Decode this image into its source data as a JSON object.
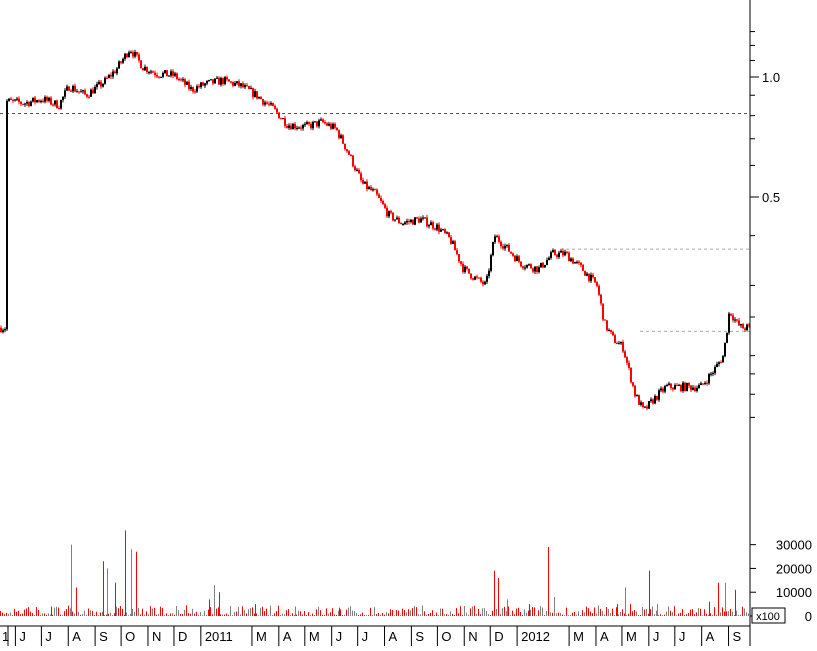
{
  "chart_data": [
    {
      "type": "candlestick",
      "title": "",
      "y_scale": "log",
      "price_axis_ticks": [
        "1.0",
        "0.5"
      ],
      "price_axis_tick_values": [
        1.0,
        0.5
      ],
      "reference_levels": [
        0.81,
        0.37,
        0.23
      ],
      "colors": {
        "up": "#000000",
        "down": "#ff0000",
        "guide": "#808080"
      },
      "time_axis_labels": [
        "J",
        "J",
        "A",
        "S",
        "O",
        "N",
        "D",
        "2011",
        "M",
        "A",
        "M",
        "J",
        "J",
        "A",
        "S",
        "O",
        "N",
        "D",
        "2012",
        "M",
        "A",
        "M",
        "J",
        "J",
        "A",
        "S"
      ],
      "price_path": [
        [
          "2010-05-20",
          0.87
        ],
        [
          "2010-06-10",
          0.86
        ],
        [
          "2010-07-01",
          0.88
        ],
        [
          "2010-07-20",
          0.85
        ],
        [
          "2010-08-01",
          0.95
        ],
        [
          "2010-08-20",
          0.9
        ],
        [
          "2010-09-10",
          0.97
        ],
        [
          "2010-09-25",
          1.05
        ],
        [
          "2010-10-10",
          1.18
        ],
        [
          "2010-10-25",
          1.06
        ],
        [
          "2010-11-10",
          1.02
        ],
        [
          "2010-11-30",
          1.01
        ],
        [
          "2010-12-20",
          0.93
        ],
        [
          "2011-01-05",
          0.96
        ],
        [
          "2011-01-25",
          0.98
        ],
        [
          "2011-02-15",
          0.95
        ],
        [
          "2011-03-05",
          0.9
        ],
        [
          "2011-03-25",
          0.83
        ],
        [
          "2011-04-10",
          0.76
        ],
        [
          "2011-04-30",
          0.75
        ],
        [
          "2011-05-20",
          0.77
        ],
        [
          "2011-06-05",
          0.74
        ],
        [
          "2011-06-20",
          0.64
        ],
        [
          "2011-07-05",
          0.54
        ],
        [
          "2011-07-20",
          0.51
        ],
        [
          "2011-08-05",
          0.45
        ],
        [
          "2011-08-20",
          0.43
        ],
        [
          "2011-09-10",
          0.44
        ],
        [
          "2011-09-30",
          0.42
        ],
        [
          "2011-10-15",
          0.39
        ],
        [
          "2011-10-30",
          0.33
        ],
        [
          "2011-11-15",
          0.31
        ],
        [
          "2011-11-25",
          0.3
        ],
        [
          "2011-12-05",
          0.4
        ],
        [
          "2011-12-20",
          0.37
        ],
        [
          "2012-01-05",
          0.34
        ],
        [
          "2012-01-25",
          0.33
        ],
        [
          "2012-02-10",
          0.36
        ],
        [
          "2012-02-25",
          0.36
        ],
        [
          "2012-03-15",
          0.33
        ],
        [
          "2012-04-01",
          0.3
        ],
        [
          "2012-04-10",
          0.24
        ],
        [
          "2012-04-20",
          0.22
        ],
        [
          "2012-05-01",
          0.21
        ],
        [
          "2012-05-15",
          0.16
        ],
        [
          "2012-05-25",
          0.145
        ],
        [
          "2012-06-05",
          0.155
        ],
        [
          "2012-06-20",
          0.167
        ],
        [
          "2012-07-10",
          0.167
        ],
        [
          "2012-07-30",
          0.167
        ],
        [
          "2012-08-15",
          0.185
        ],
        [
          "2012-08-25",
          0.2
        ],
        [
          "2012-09-01",
          0.26
        ],
        [
          "2012-09-10",
          0.24
        ],
        [
          "2012-09-15",
          0.235
        ]
      ]
    },
    {
      "type": "bar",
      "title": "",
      "axis_unit_label": "x100",
      "y_ticks": [
        "30000",
        "20000",
        "10000",
        "0"
      ],
      "y_tick_values": [
        30000,
        20000,
        10000,
        0
      ],
      "ylim": [
        0,
        37000
      ],
      "volume_spikes": [
        [
          "2010-07-12",
          4000
        ],
        [
          "2010-08-04",
          30000
        ],
        [
          "2010-08-10",
          12000
        ],
        [
          "2010-09-10",
          23000
        ],
        [
          "2010-09-15",
          20000
        ],
        [
          "2010-09-24",
          14000
        ],
        [
          "2010-10-05",
          36000
        ],
        [
          "2010-10-12",
          28000
        ],
        [
          "2010-10-18",
          27000
        ],
        [
          "2011-01-10",
          7000
        ],
        [
          "2011-01-16",
          13000
        ],
        [
          "2011-01-22",
          10000
        ],
        [
          "2011-03-05",
          5000
        ],
        [
          "2011-04-20",
          4000
        ],
        [
          "2011-06-10",
          3500
        ],
        [
          "2011-08-10",
          2500
        ],
        [
          "2011-11-10",
          4000
        ],
        [
          "2011-12-05",
          19000
        ],
        [
          "2011-12-10",
          16000
        ],
        [
          "2011-12-20",
          7000
        ],
        [
          "2012-01-15",
          5000
        ],
        [
          "2012-02-06",
          29000
        ],
        [
          "2012-02-12",
          8000
        ],
        [
          "2012-03-20",
          4000
        ],
        [
          "2012-04-25",
          5000
        ],
        [
          "2012-05-05",
          12000
        ],
        [
          "2012-05-10",
          5000
        ],
        [
          "2012-06-01",
          19000
        ],
        [
          "2012-06-10",
          5000
        ],
        [
          "2012-08-10",
          6000
        ],
        [
          "2012-08-20",
          14000
        ],
        [
          "2012-08-28",
          14000
        ],
        [
          "2012-09-08",
          11000
        ]
      ]
    }
  ]
}
